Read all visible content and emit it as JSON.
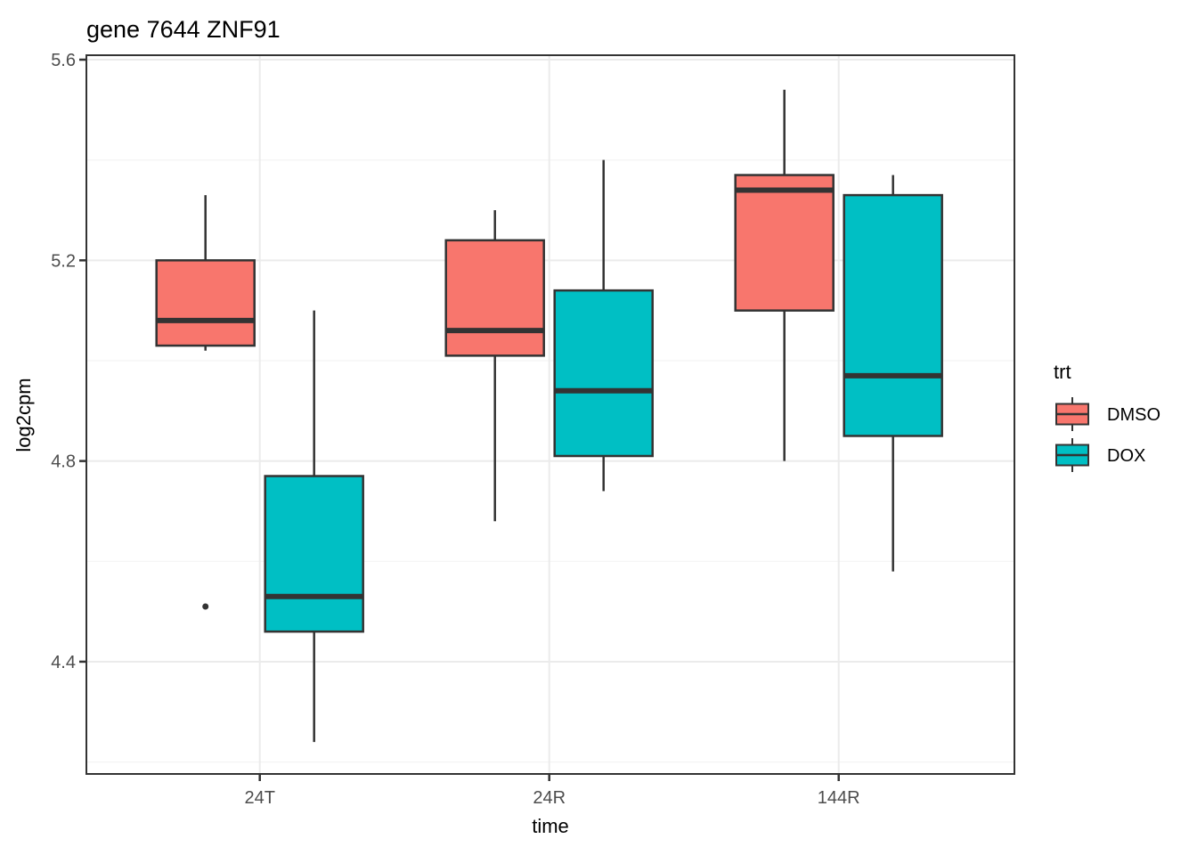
{
  "chart_data": {
    "type": "boxplot",
    "title": "gene 7644 ZNF91",
    "xlabel": "time",
    "ylabel": "log2cpm",
    "categories": [
      "24T",
      "24R",
      "144R"
    ],
    "y_ticks": [
      4.4,
      4.8,
      5.2,
      5.6
    ],
    "y_minor_ticks": [
      4.2,
      4.6,
      5.0,
      5.4
    ],
    "ylim": [
      4.18,
      5.61
    ],
    "grid": true,
    "legend": {
      "title": "trt",
      "position": "right"
    },
    "series": [
      {
        "name": "DMSO",
        "fill": "#F8766D",
        "boxes": [
          {
            "category": "24T",
            "min": 5.02,
            "q1": 5.03,
            "median": 5.08,
            "q3": 5.2,
            "max": 5.33,
            "outliers": [
              4.51
            ]
          },
          {
            "category": "24R",
            "min": 4.68,
            "q1": 5.01,
            "median": 5.06,
            "q3": 5.24,
            "max": 5.3,
            "outliers": []
          },
          {
            "category": "144R",
            "min": 4.8,
            "q1": 5.1,
            "median": 5.34,
            "q3": 5.37,
            "max": 5.54,
            "outliers": []
          }
        ]
      },
      {
        "name": "DOX",
        "fill": "#00BFC4",
        "boxes": [
          {
            "category": "24T",
            "min": 4.24,
            "q1": 4.46,
            "median": 4.53,
            "q3": 4.77,
            "max": 5.1,
            "outliers": []
          },
          {
            "category": "24R",
            "min": 4.74,
            "q1": 4.81,
            "median": 4.94,
            "q3": 5.14,
            "max": 5.4,
            "outliers": []
          },
          {
            "category": "144R",
            "min": 4.58,
            "q1": 4.85,
            "median": 4.97,
            "q3": 5.33,
            "max": 5.37,
            "outliers": []
          }
        ]
      }
    ],
    "colors": {
      "box_outline": "#333333",
      "outlier": "#333333",
      "grid_major": "#EBEBEB",
      "grid_minor": "#F4F4F4",
      "panel_border": "#333333",
      "tick_mark": "#333333",
      "tick_text": "#4D4D4D",
      "text": "#000000",
      "panel_background": "#FFFFFF"
    }
  }
}
